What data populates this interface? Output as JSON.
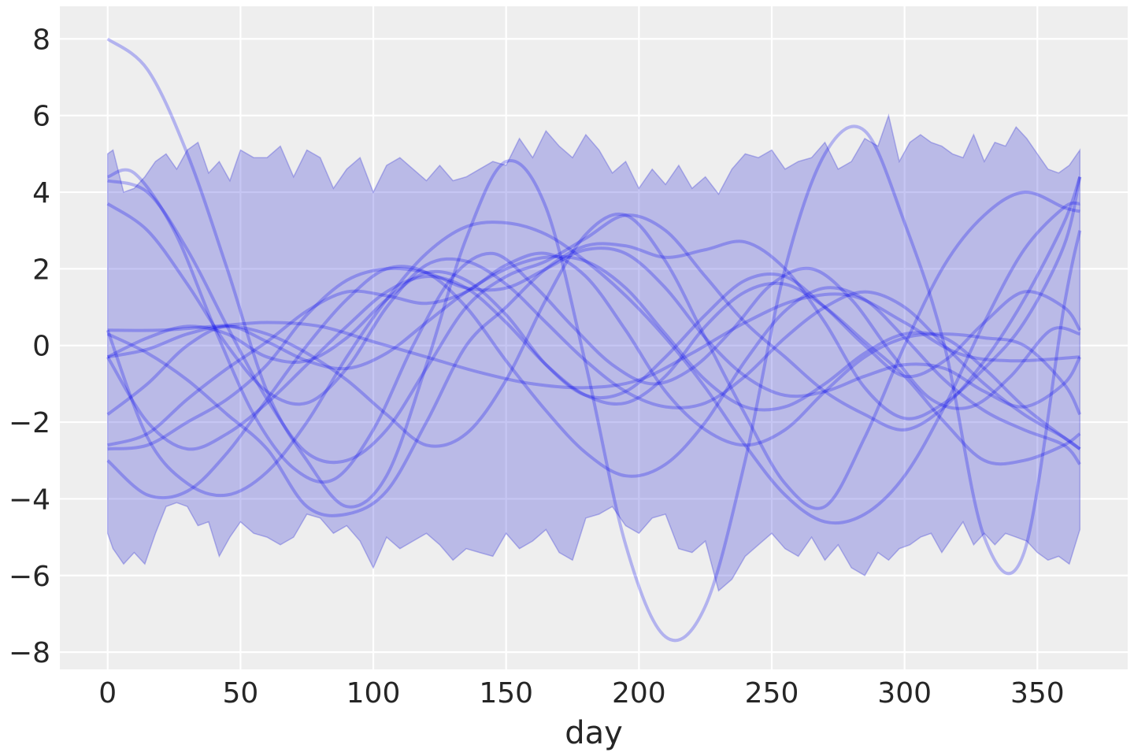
{
  "chart_data": {
    "type": "line",
    "title": "",
    "xlabel": "day",
    "ylabel": "",
    "xlim": [
      -18,
      384
    ],
    "ylim": [
      -8.45,
      8.85
    ],
    "xticks": [
      0,
      50,
      100,
      150,
      200,
      250,
      300,
      350
    ],
    "yticks": [
      -8,
      -6,
      -4,
      -2,
      0,
      2,
      4,
      6,
      8
    ],
    "xtick_labels": [
      "0",
      "50",
      "100",
      "150",
      "200",
      "250",
      "300",
      "350"
    ],
    "ytick_labels": [
      "−8",
      "−6",
      "−4",
      "−2",
      "0",
      "2",
      "4",
      "6",
      "8"
    ],
    "grid": true,
    "colors": {
      "background": "#eeeeee",
      "grid": "#ffffff",
      "line": "#0000ee",
      "band": "#4141d8",
      "text": "#262626"
    },
    "band": {
      "x": [
        0,
        2,
        6,
        10,
        14,
        18,
        22,
        26,
        30,
        34,
        38,
        42,
        46,
        50,
        55,
        60,
        65,
        70,
        75,
        80,
        85,
        90,
        95,
        100,
        105,
        110,
        115,
        120,
        125,
        130,
        135,
        140,
        145,
        150,
        155,
        160,
        165,
        170,
        175,
        180,
        185,
        190,
        195,
        200,
        205,
        210,
        215,
        220,
        225,
        230,
        235,
        240,
        245,
        250,
        255,
        260,
        265,
        270,
        275,
        280,
        285,
        290,
        294,
        298,
        302,
        306,
        310,
        314,
        318,
        322,
        326,
        330,
        334,
        338,
        342,
        346,
        350,
        354,
        358,
        362,
        366
      ],
      "upper": [
        5.0,
        5.1,
        4.0,
        4.1,
        4.4,
        4.8,
        5.0,
        4.6,
        5.1,
        5.3,
        4.5,
        4.8,
        4.3,
        5.1,
        4.9,
        4.9,
        5.2,
        4.4,
        5.1,
        4.9,
        4.1,
        4.6,
        4.9,
        4.0,
        4.7,
        4.9,
        4.6,
        4.3,
        4.7,
        4.3,
        4.4,
        4.6,
        4.8,
        4.7,
        5.4,
        4.9,
        5.6,
        5.2,
        4.9,
        5.5,
        5.1,
        4.5,
        4.8,
        4.1,
        4.6,
        4.2,
        4.7,
        4.1,
        4.4,
        3.95,
        4.6,
        5.0,
        4.9,
        5.1,
        4.6,
        4.8,
        4.9,
        5.3,
        4.6,
        4.8,
        5.4,
        5.2,
        6.0,
        4.8,
        5.3,
        5.5,
        5.3,
        5.2,
        5.0,
        4.9,
        5.5,
        4.8,
        5.3,
        5.2,
        5.7,
        5.4,
        5.0,
        4.6,
        4.5,
        4.7,
        5.1
      ],
      "lower": [
        -4.9,
        -5.3,
        -5.7,
        -5.4,
        -5.7,
        -4.9,
        -4.2,
        -4.1,
        -4.2,
        -4.7,
        -4.6,
        -5.5,
        -5.0,
        -4.6,
        -4.9,
        -5.0,
        -5.2,
        -5.0,
        -4.4,
        -4.5,
        -4.9,
        -4.7,
        -5.1,
        -5.8,
        -5.0,
        -5.3,
        -5.1,
        -4.9,
        -5.2,
        -5.6,
        -5.3,
        -5.4,
        -5.5,
        -4.9,
        -5.3,
        -5.1,
        -4.8,
        -5.4,
        -5.6,
        -4.5,
        -4.4,
        -4.2,
        -4.7,
        -4.9,
        -4.5,
        -4.4,
        -5.3,
        -5.4,
        -5.1,
        -6.4,
        -6.1,
        -5.5,
        -5.2,
        -4.9,
        -5.3,
        -5.5,
        -5.0,
        -5.6,
        -5.2,
        -5.8,
        -6.0,
        -5.4,
        -5.6,
        -5.3,
        -5.2,
        -5.0,
        -4.9,
        -5.4,
        -5.0,
        -4.6,
        -5.2,
        -4.9,
        -5.2,
        -4.9,
        -5.0,
        -5.1,
        -5.4,
        -5.6,
        -5.5,
        -5.7,
        -4.8
      ]
    },
    "series": [
      {
        "x": [
          0,
          15,
          30,
          45,
          60,
          75,
          90,
          105,
          120,
          135,
          150,
          165,
          180,
          195,
          210,
          225,
          240,
          255,
          270,
          285,
          300,
          315,
          330,
          345,
          360,
          366
        ],
        "values": [
          8.0,
          7.2,
          5.0,
          2.0,
          -1.2,
          -3.0,
          -4.2,
          -3.4,
          -0.5,
          2.8,
          4.8,
          3.6,
          -0.5,
          -5.2,
          -7.6,
          -6.8,
          -3.0,
          2.0,
          5.0,
          5.6,
          3.2,
          0.0,
          -5.0,
          -5.4,
          1.0,
          3.0
        ]
      },
      {
        "x": [
          0,
          20,
          40,
          60,
          80,
          100,
          120,
          140,
          160,
          180,
          200,
          220,
          240,
          260,
          280,
          300,
          320,
          340,
          366
        ],
        "values": [
          0.4,
          0.4,
          0.5,
          0.6,
          0.5,
          0.1,
          -0.3,
          -0.7,
          -1.0,
          -1.1,
          -0.9,
          -0.2,
          0.6,
          1.2,
          1.3,
          0.6,
          -0.2,
          -0.4,
          -0.3
        ]
      },
      {
        "x": [
          0,
          10,
          25,
          40,
          55,
          70,
          85,
          100,
          115,
          130,
          145,
          160,
          175,
          190,
          205,
          220,
          235,
          250,
          265,
          280,
          295,
          310,
          325,
          340,
          355,
          366
        ],
        "values": [
          4.4,
          4.5,
          3.0,
          0.5,
          -1.8,
          -3.2,
          -3.5,
          -2.2,
          0.0,
          1.8,
          2.4,
          1.6,
          0.5,
          -0.5,
          -1.0,
          -0.6,
          0.4,
          1.6,
          2.0,
          1.2,
          -0.2,
          -1.4,
          -1.6,
          -0.8,
          0.4,
          0.3
        ]
      },
      {
        "x": [
          0,
          15,
          30,
          45,
          60,
          75,
          90,
          105,
          120,
          135,
          150,
          165,
          180,
          195,
          210,
          225,
          240,
          255,
          270,
          285,
          300,
          315,
          330,
          345,
          360,
          366
        ],
        "values": [
          3.7,
          3.0,
          1.6,
          0.0,
          -1.2,
          -1.5,
          -0.6,
          1.0,
          2.1,
          2.2,
          1.6,
          0.6,
          -0.4,
          -1.2,
          -1.6,
          -1.5,
          -0.8,
          0.2,
          1.0,
          1.4,
          1.0,
          0.0,
          -1.0,
          -1.8,
          -2.4,
          -2.7
        ]
      },
      {
        "x": [
          0,
          15,
          30,
          45,
          60,
          75,
          90,
          105,
          120,
          135,
          150,
          165,
          180,
          195,
          210,
          225,
          240,
          255,
          270,
          285,
          300,
          315,
          330,
          345,
          360,
          366
        ],
        "values": [
          -0.3,
          0.2,
          0.5,
          0.3,
          -0.3,
          -0.4,
          0.2,
          1.2,
          1.9,
          1.7,
          0.8,
          -0.5,
          -1.3,
          -1.2,
          -0.3,
          0.8,
          1.7,
          1.8,
          1.0,
          0.0,
          -0.8,
          -0.4,
          0.6,
          1.4,
          1.0,
          0.4
        ]
      },
      {
        "x": [
          0,
          15,
          30,
          45,
          60,
          75,
          90,
          105,
          120,
          135,
          150,
          165,
          180,
          195,
          210,
          225,
          240,
          255,
          270,
          285,
          300,
          315,
          330,
          345,
          360,
          366
        ],
        "values": [
          -1.8,
          -1.0,
          0.0,
          0.5,
          0.1,
          -0.4,
          -0.6,
          -0.2,
          0.6,
          1.4,
          2.0,
          2.3,
          2.2,
          1.5,
          0.3,
          -0.9,
          -1.6,
          -1.6,
          -1.0,
          -0.2,
          0.3,
          0.2,
          -0.6,
          -1.6,
          -2.4,
          -2.7
        ]
      },
      {
        "x": [
          0,
          15,
          30,
          45,
          60,
          75,
          90,
          105,
          120,
          135,
          150,
          165,
          180,
          195,
          210,
          225,
          240,
          255,
          270,
          285,
          300,
          315,
          330,
          345,
          360,
          366
        ],
        "values": [
          -2.6,
          -2.3,
          -1.4,
          -0.6,
          0.1,
          0.9,
          1.4,
          1.3,
          1.1,
          1.4,
          2.1,
          2.4,
          1.8,
          0.4,
          -1.2,
          -2.2,
          -2.6,
          -2.2,
          -1.2,
          -0.3,
          0.2,
          0.3,
          0.2,
          0.0,
          -1.0,
          -1.8
        ]
      },
      {
        "x": [
          0,
          15,
          30,
          45,
          60,
          75,
          90,
          105,
          120,
          135,
          150,
          165,
          180,
          195,
          210,
          225,
          240,
          255,
          270,
          285,
          300,
          315,
          330,
          345,
          360,
          366
        ],
        "values": [
          -2.7,
          -2.6,
          -2.0,
          -1.4,
          -0.5,
          0.8,
          1.7,
          2.0,
          1.9,
          1.5,
          1.5,
          2.0,
          2.5,
          2.4,
          1.5,
          0.2,
          -0.8,
          -1.3,
          -1.2,
          -0.8,
          -0.5,
          -0.6,
          -1.2,
          -1.6,
          -1.0,
          -0.3
        ]
      },
      {
        "x": [
          0,
          15,
          30,
          45,
          60,
          75,
          90,
          105,
          120,
          135,
          150,
          165,
          180,
          195,
          210,
          225,
          240,
          255,
          270,
          285,
          300,
          315,
          330,
          345,
          360,
          366
        ],
        "values": [
          -3.0,
          -3.9,
          -3.8,
          -2.8,
          -1.4,
          0.0,
          1.2,
          2.0,
          1.9,
          1.0,
          -0.4,
          -1.7,
          -2.8,
          -3.4,
          -3.1,
          -2.0,
          -0.4,
          0.9,
          1.5,
          1.2,
          0.2,
          -0.9,
          -1.7,
          -2.2,
          -2.6,
          -3.1
        ]
      },
      {
        "x": [
          0,
          15,
          30,
          45,
          60,
          75,
          90,
          105,
          120,
          135,
          150,
          165,
          180,
          195,
          210,
          225,
          240,
          255,
          270,
          285,
          300,
          315,
          330,
          345,
          360,
          366
        ],
        "values": [
          0.4,
          -2.4,
          -3.6,
          -3.9,
          -3.3,
          -2.0,
          -0.3,
          1.2,
          2.4,
          3.1,
          3.2,
          2.9,
          2.2,
          1.3,
          0.2,
          -1.1,
          -2.6,
          -3.9,
          -4.6,
          -4.4,
          -3.4,
          -1.6,
          0.6,
          2.5,
          3.6,
          3.7
        ]
      },
      {
        "x": [
          0,
          15,
          30,
          45,
          60,
          75,
          90,
          105,
          120,
          135,
          150,
          165,
          180,
          195,
          210,
          225,
          240,
          255,
          270,
          285,
          300,
          315,
          330,
          345,
          360,
          366
        ],
        "values": [
          -0.3,
          -2.0,
          -2.7,
          -2.3,
          -1.5,
          -0.5,
          0.5,
          1.4,
          1.8,
          1.5,
          0.6,
          -0.5,
          -1.3,
          -1.5,
          -0.8,
          0.5,
          1.4,
          1.6,
          1.0,
          0.1,
          -0.8,
          -2.0,
          -3.0,
          -3.0,
          -2.6,
          -2.3
        ]
      },
      {
        "x": [
          0,
          15,
          30,
          45,
          60,
          75,
          90,
          105,
          120,
          135,
          150,
          165,
          180,
          195,
          210,
          225,
          240,
          255,
          270,
          285,
          300,
          315,
          330,
          345,
          360,
          366
        ],
        "values": [
          -0.3,
          -0.1,
          0.3,
          0.5,
          0.3,
          -0.2,
          -0.9,
          -1.8,
          -2.6,
          -2.3,
          -0.9,
          1.2,
          2.9,
          3.4,
          2.2,
          0.2,
          -1.8,
          -3.6,
          -4.2,
          -2.4,
          0.0,
          2.1,
          3.4,
          4.0,
          3.6,
          3.5
        ]
      },
      {
        "x": [
          0,
          15,
          30,
          45,
          60,
          75,
          90,
          105,
          120,
          135,
          150,
          165,
          180,
          195,
          210,
          225,
          240,
          255,
          270,
          285,
          300,
          315,
          330,
          345,
          360,
          366
        ],
        "values": [
          0.3,
          -0.2,
          -0.9,
          -1.8,
          -2.7,
          -4.2,
          -4.4,
          -3.8,
          -2.0,
          0.0,
          1.0,
          2.0,
          2.6,
          2.6,
          2.3,
          2.5,
          2.7,
          2.0,
          0.6,
          -1.1,
          -1.9,
          -1.5,
          -0.6,
          0.6,
          2.6,
          4.4
        ]
      },
      {
        "x": [
          0,
          15,
          30,
          45,
          60,
          75,
          90,
          105,
          120,
          135,
          150,
          165,
          180,
          195,
          210,
          225,
          240,
          255,
          270,
          285,
          300,
          315,
          330,
          345,
          360,
          366
        ],
        "values": [
          4.3,
          4.0,
          2.5,
          0.5,
          -1.4,
          -2.8,
          -3.0,
          -2.2,
          -0.6,
          1.0,
          1.8,
          2.2,
          2.8,
          3.4,
          3.0,
          1.8,
          0.6,
          -0.3,
          -1.2,
          -1.8,
          -2.2,
          -1.6,
          -0.4,
          1.2,
          3.2,
          4.4
        ]
      }
    ]
  }
}
